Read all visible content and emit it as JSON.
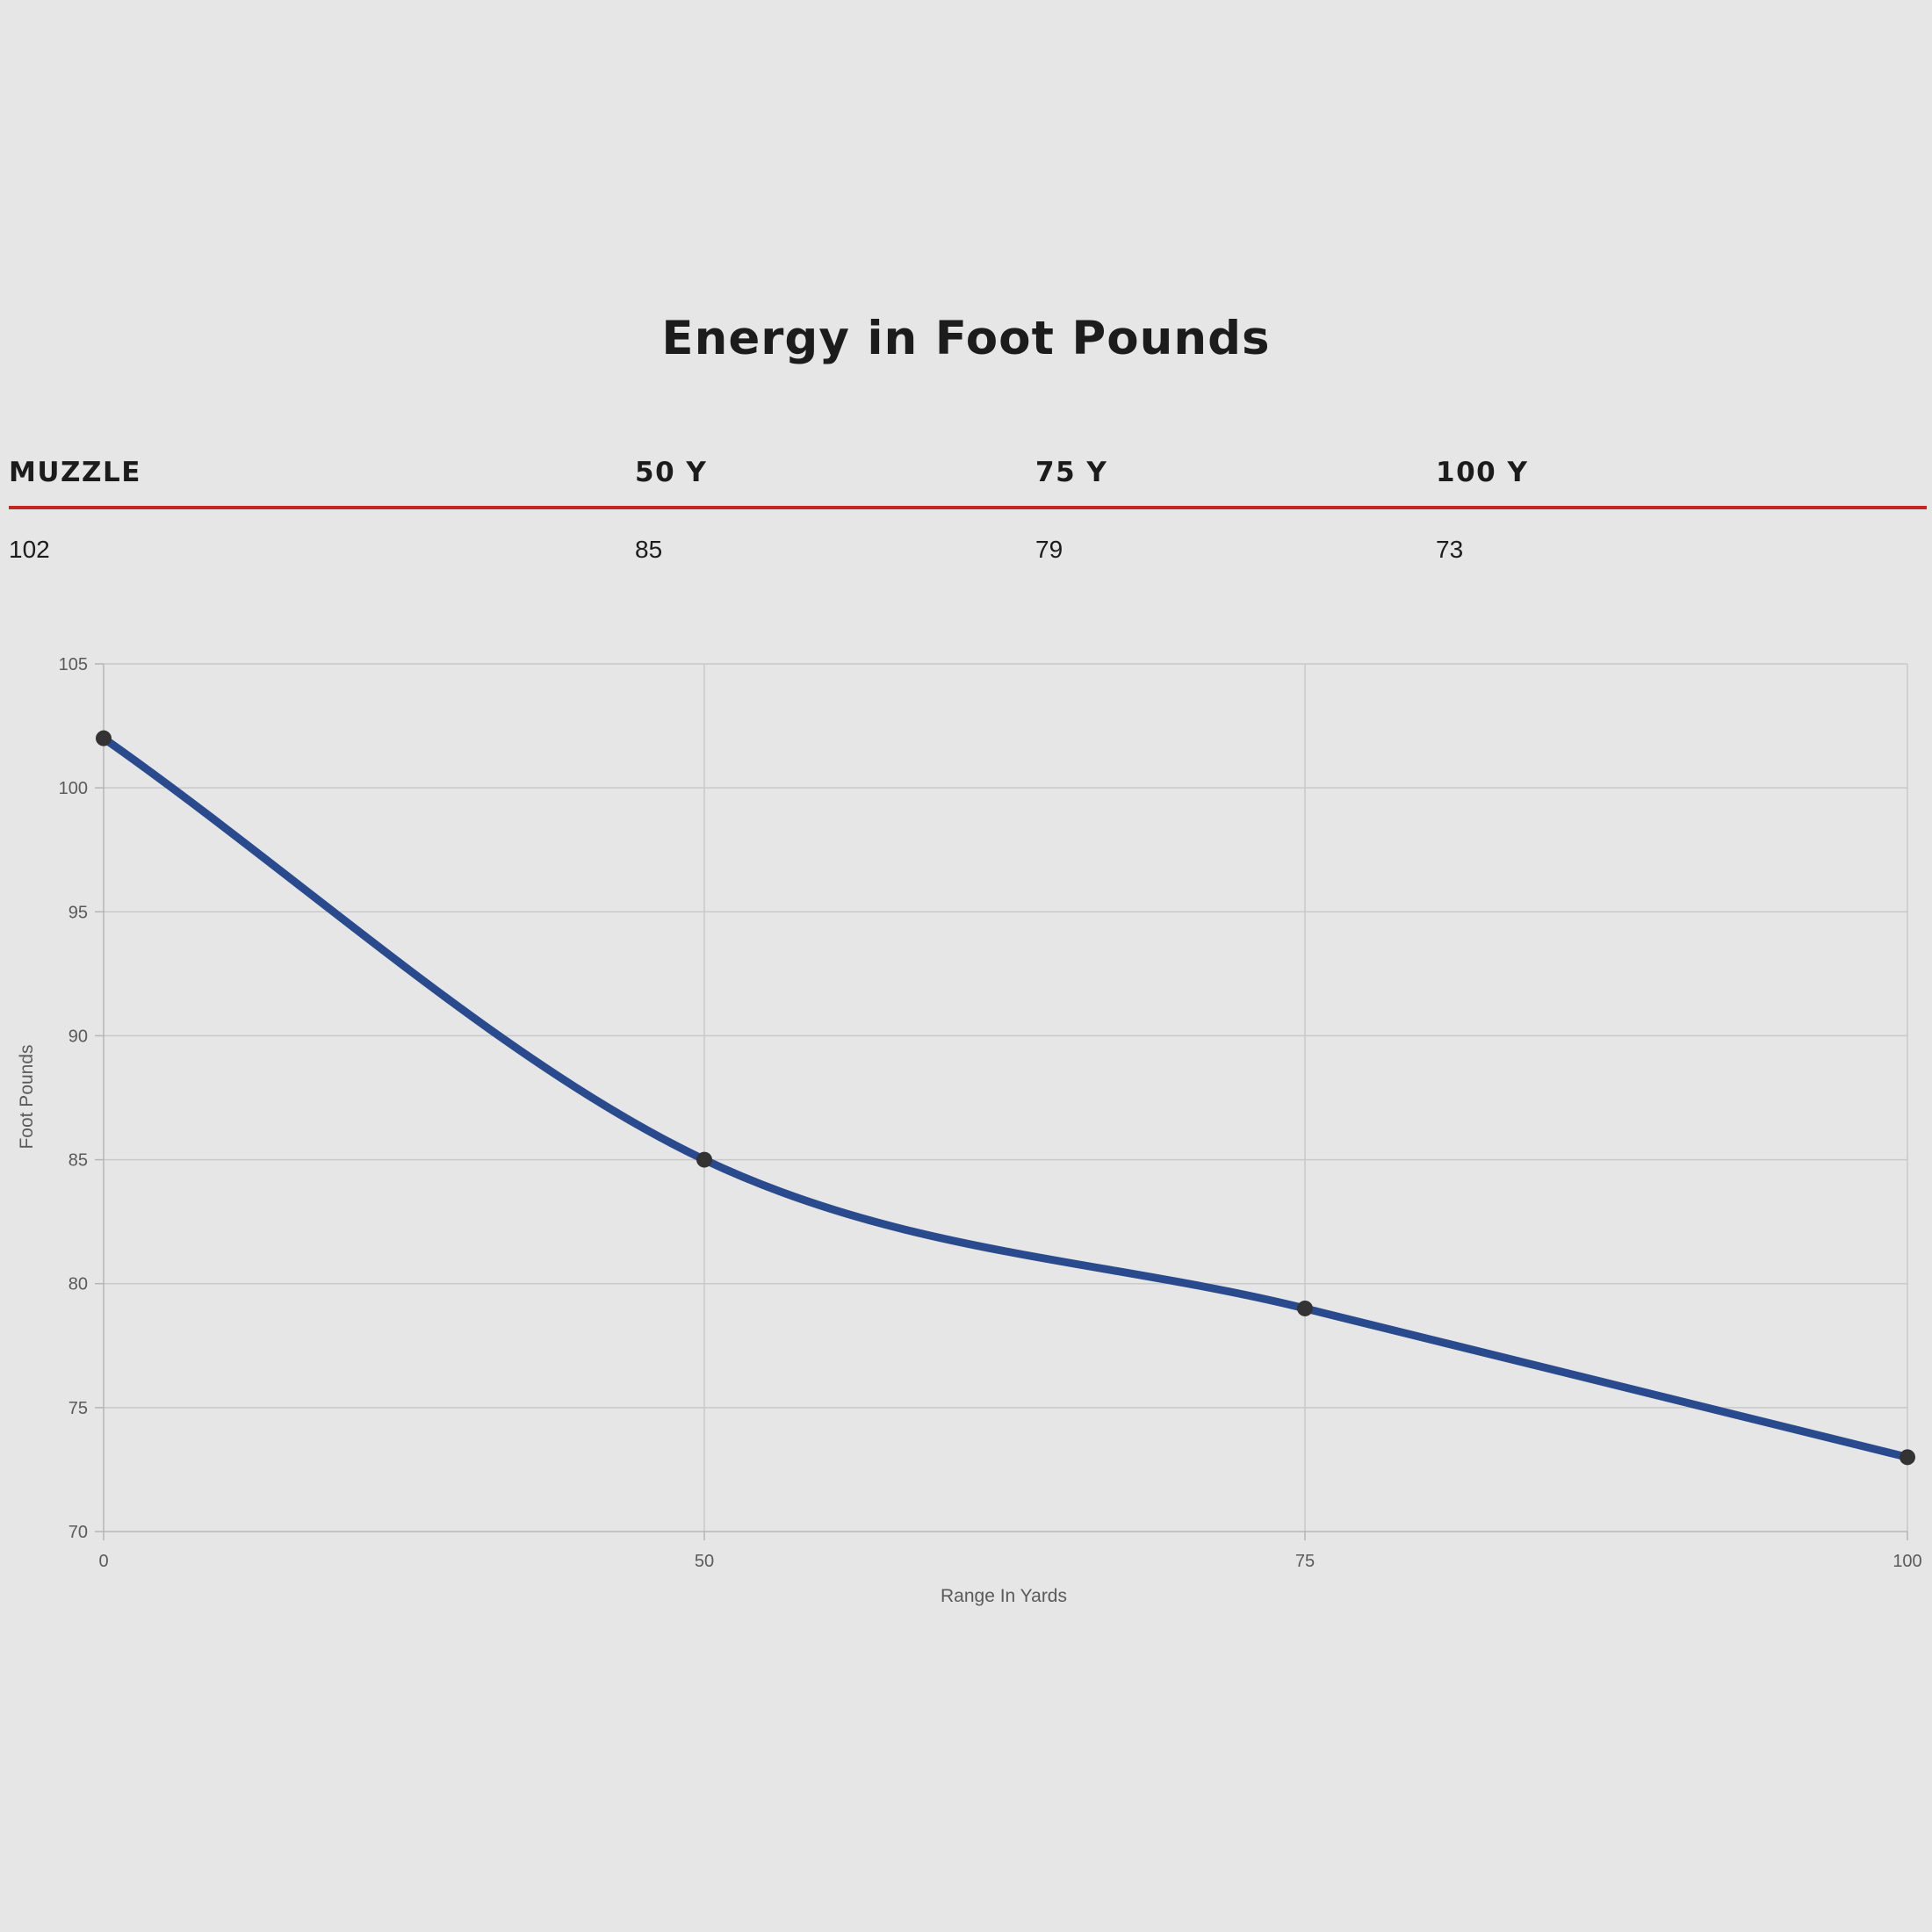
{
  "title": "Energy in Foot Pounds",
  "table": {
    "columns": [
      {
        "header": "MUZZLE",
        "value": "102"
      },
      {
        "header": "50 Y",
        "value": "85"
      },
      {
        "header": "75 Y",
        "value": "79"
      },
      {
        "header": "100 Y",
        "value": "73"
      }
    ],
    "rule_color": "#c4271f"
  },
  "chart_data": {
    "type": "line",
    "x": [
      0,
      50,
      75,
      100
    ],
    "series": [
      {
        "values": [
          102,
          85,
          79,
          73
        ],
        "color": "#2a4a8e"
      }
    ],
    "xlabel": "Range In Yards",
    "ylabel": "Foot Pounds",
    "xticks": [
      "0",
      "50",
      "75",
      "100"
    ],
    "yticks": [
      70,
      75,
      80,
      85,
      90,
      95,
      100,
      105
    ],
    "ylim": [
      70,
      105
    ],
    "grid": true,
    "smooth": true,
    "point_color": "#333333"
  }
}
